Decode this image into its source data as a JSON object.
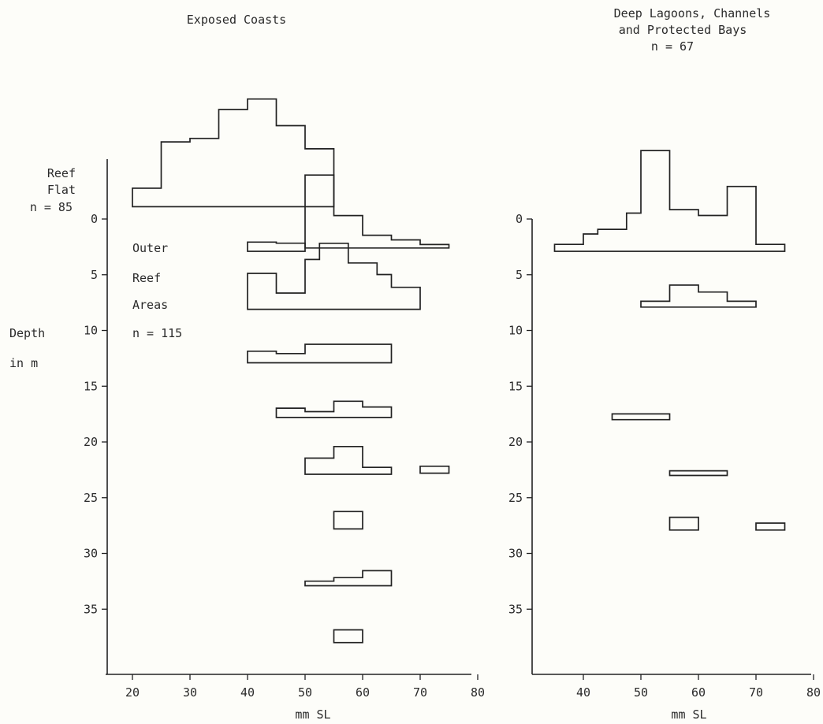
{
  "chart_data": [
    {
      "type": "histogram-stack",
      "title": "Exposed Coasts",
      "xlabel": "mm SL",
      "ylabel": "Depth in m",
      "ylabel_lines": [
        "Depth",
        "in m"
      ],
      "xticks": [
        20,
        30,
        40,
        50,
        60,
        70,
        80
      ],
      "yticks": [
        0,
        5,
        10,
        15,
        20,
        25,
        30,
        35
      ],
      "xlim": [
        15,
        80
      ],
      "ylim": [
        -5,
        40
      ],
      "group_labels": [
        {
          "lines": [
            "Reef",
            "Flat",
            "n = 85"
          ]
        },
        {
          "lines": [
            "Outer",
            "Reef",
            "Areas",
            "n = 115"
          ]
        }
      ],
      "histograms": [
        {
          "group": "Reef Flat",
          "base_depth": -1.1,
          "top_depth": -13,
          "bins": [
            20,
            25,
            30,
            35,
            40,
            45,
            50,
            55
          ],
          "values": [
            1.6,
            5.6,
            5.9,
            8.4,
            9.3,
            7.0,
            5.0
          ]
        },
        {
          "group": "Outer Reef Areas",
          "base_depth": 2.6,
          "top_depth": -1,
          "bins": [
            50,
            55,
            60,
            65,
            70,
            75
          ],
          "values": [
            6.3,
            2.8,
            1.1,
            0.7,
            0.3
          ]
        },
        {
          "group": "Outer Reef Areas",
          "base_depth": 2.9,
          "top_depth": 2.6,
          "bins": [
            40,
            45,
            50
          ],
          "values": [
            0.8,
            0.7
          ]
        },
        {
          "group": "Outer Reef Areas",
          "base_depth": 8.1,
          "top_depth": 3.9,
          "bins": [
            40,
            45,
            50,
            52.5,
            57.5,
            62.5,
            65,
            70
          ],
          "values": [
            3.1,
            1.4,
            4.3,
            5.7,
            4.0,
            3.0,
            1.9
          ]
        },
        {
          "group": "Outer Reef Areas",
          "base_depth": 12.9,
          "top_depth": 10.5,
          "bins": [
            40,
            45,
            50,
            65
          ],
          "values": [
            1.0,
            0.8,
            1.6
          ]
        },
        {
          "group": "Outer Reef Areas",
          "base_depth": 17.8,
          "top_depth": 15.5,
          "bins": [
            45,
            50,
            55,
            60,
            65
          ],
          "values": [
            0.8,
            0.5,
            1.4,
            0.9
          ]
        },
        {
          "group": "Outer Reef Areas",
          "base_depth": 22.9,
          "top_depth": 20.5,
          "bins": [
            50,
            55,
            60,
            65
          ],
          "values": [
            1.4,
            2.4,
            0.6
          ]
        },
        {
          "group": "Outer Reef Areas",
          "base_depth": 22.8,
          "top_depth": 22.0,
          "bins": [
            70,
            75
          ],
          "values": [
            0.6
          ]
        },
        {
          "group": "Outer Reef Areas",
          "base_depth": 27.8,
          "top_depth": 26.0,
          "bins": [
            55,
            60
          ],
          "values": [
            1.5
          ]
        },
        {
          "group": "Outer Reef Areas",
          "base_depth": 32.9,
          "top_depth": 31.0,
          "bins": [
            50,
            55,
            60,
            65
          ],
          "values": [
            0.4,
            0.7,
            1.3
          ]
        },
        {
          "group": "Outer Reef Areas",
          "base_depth": 38.0,
          "top_depth": 37.0,
          "bins": [
            55,
            60
          ],
          "values": [
            1.1
          ]
        }
      ]
    },
    {
      "type": "histogram-stack",
      "title_lines": [
        "Deep Lagoons, Channels",
        "and Protected Bays",
        "n = 67"
      ],
      "xlabel": "mm SL",
      "xticks": [
        40,
        50,
        60,
        70,
        80
      ],
      "yticks": [
        0,
        5,
        10,
        15,
        20,
        25,
        30,
        35
      ],
      "xlim": [
        30,
        80
      ],
      "ylim": [
        -5,
        40
      ],
      "histograms": [
        {
          "base_depth": 2.9,
          "top_depth": -6,
          "bins": [
            35,
            40,
            42.5,
            47.5,
            50,
            55,
            60,
            65,
            70,
            75
          ],
          "values": [
            0.6,
            1.5,
            1.9,
            3.3,
            8.7,
            3.6,
            3.1,
            5.6,
            0.6
          ]
        },
        {
          "base_depth": 7.9,
          "top_depth": 5.8,
          "bins": [
            50,
            55,
            60,
            65,
            70
          ],
          "values": [
            0.5,
            1.9,
            1.3,
            0.5
          ]
        },
        {
          "base_depth": 18.0,
          "top_depth": 17.5,
          "bins": [
            45,
            55
          ],
          "values": [
            0.5
          ]
        },
        {
          "base_depth": 23.0,
          "top_depth": 22.5,
          "bins": [
            55,
            65
          ],
          "values": [
            0.4
          ]
        },
        {
          "base_depth": 27.9,
          "top_depth": 26.8,
          "bins": [
            55,
            60
          ],
          "values": [
            1.1
          ]
        },
        {
          "base_depth": 27.9,
          "top_depth": 27.3,
          "bins": [
            70,
            75
          ],
          "values": [
            0.6
          ]
        }
      ]
    }
  ]
}
